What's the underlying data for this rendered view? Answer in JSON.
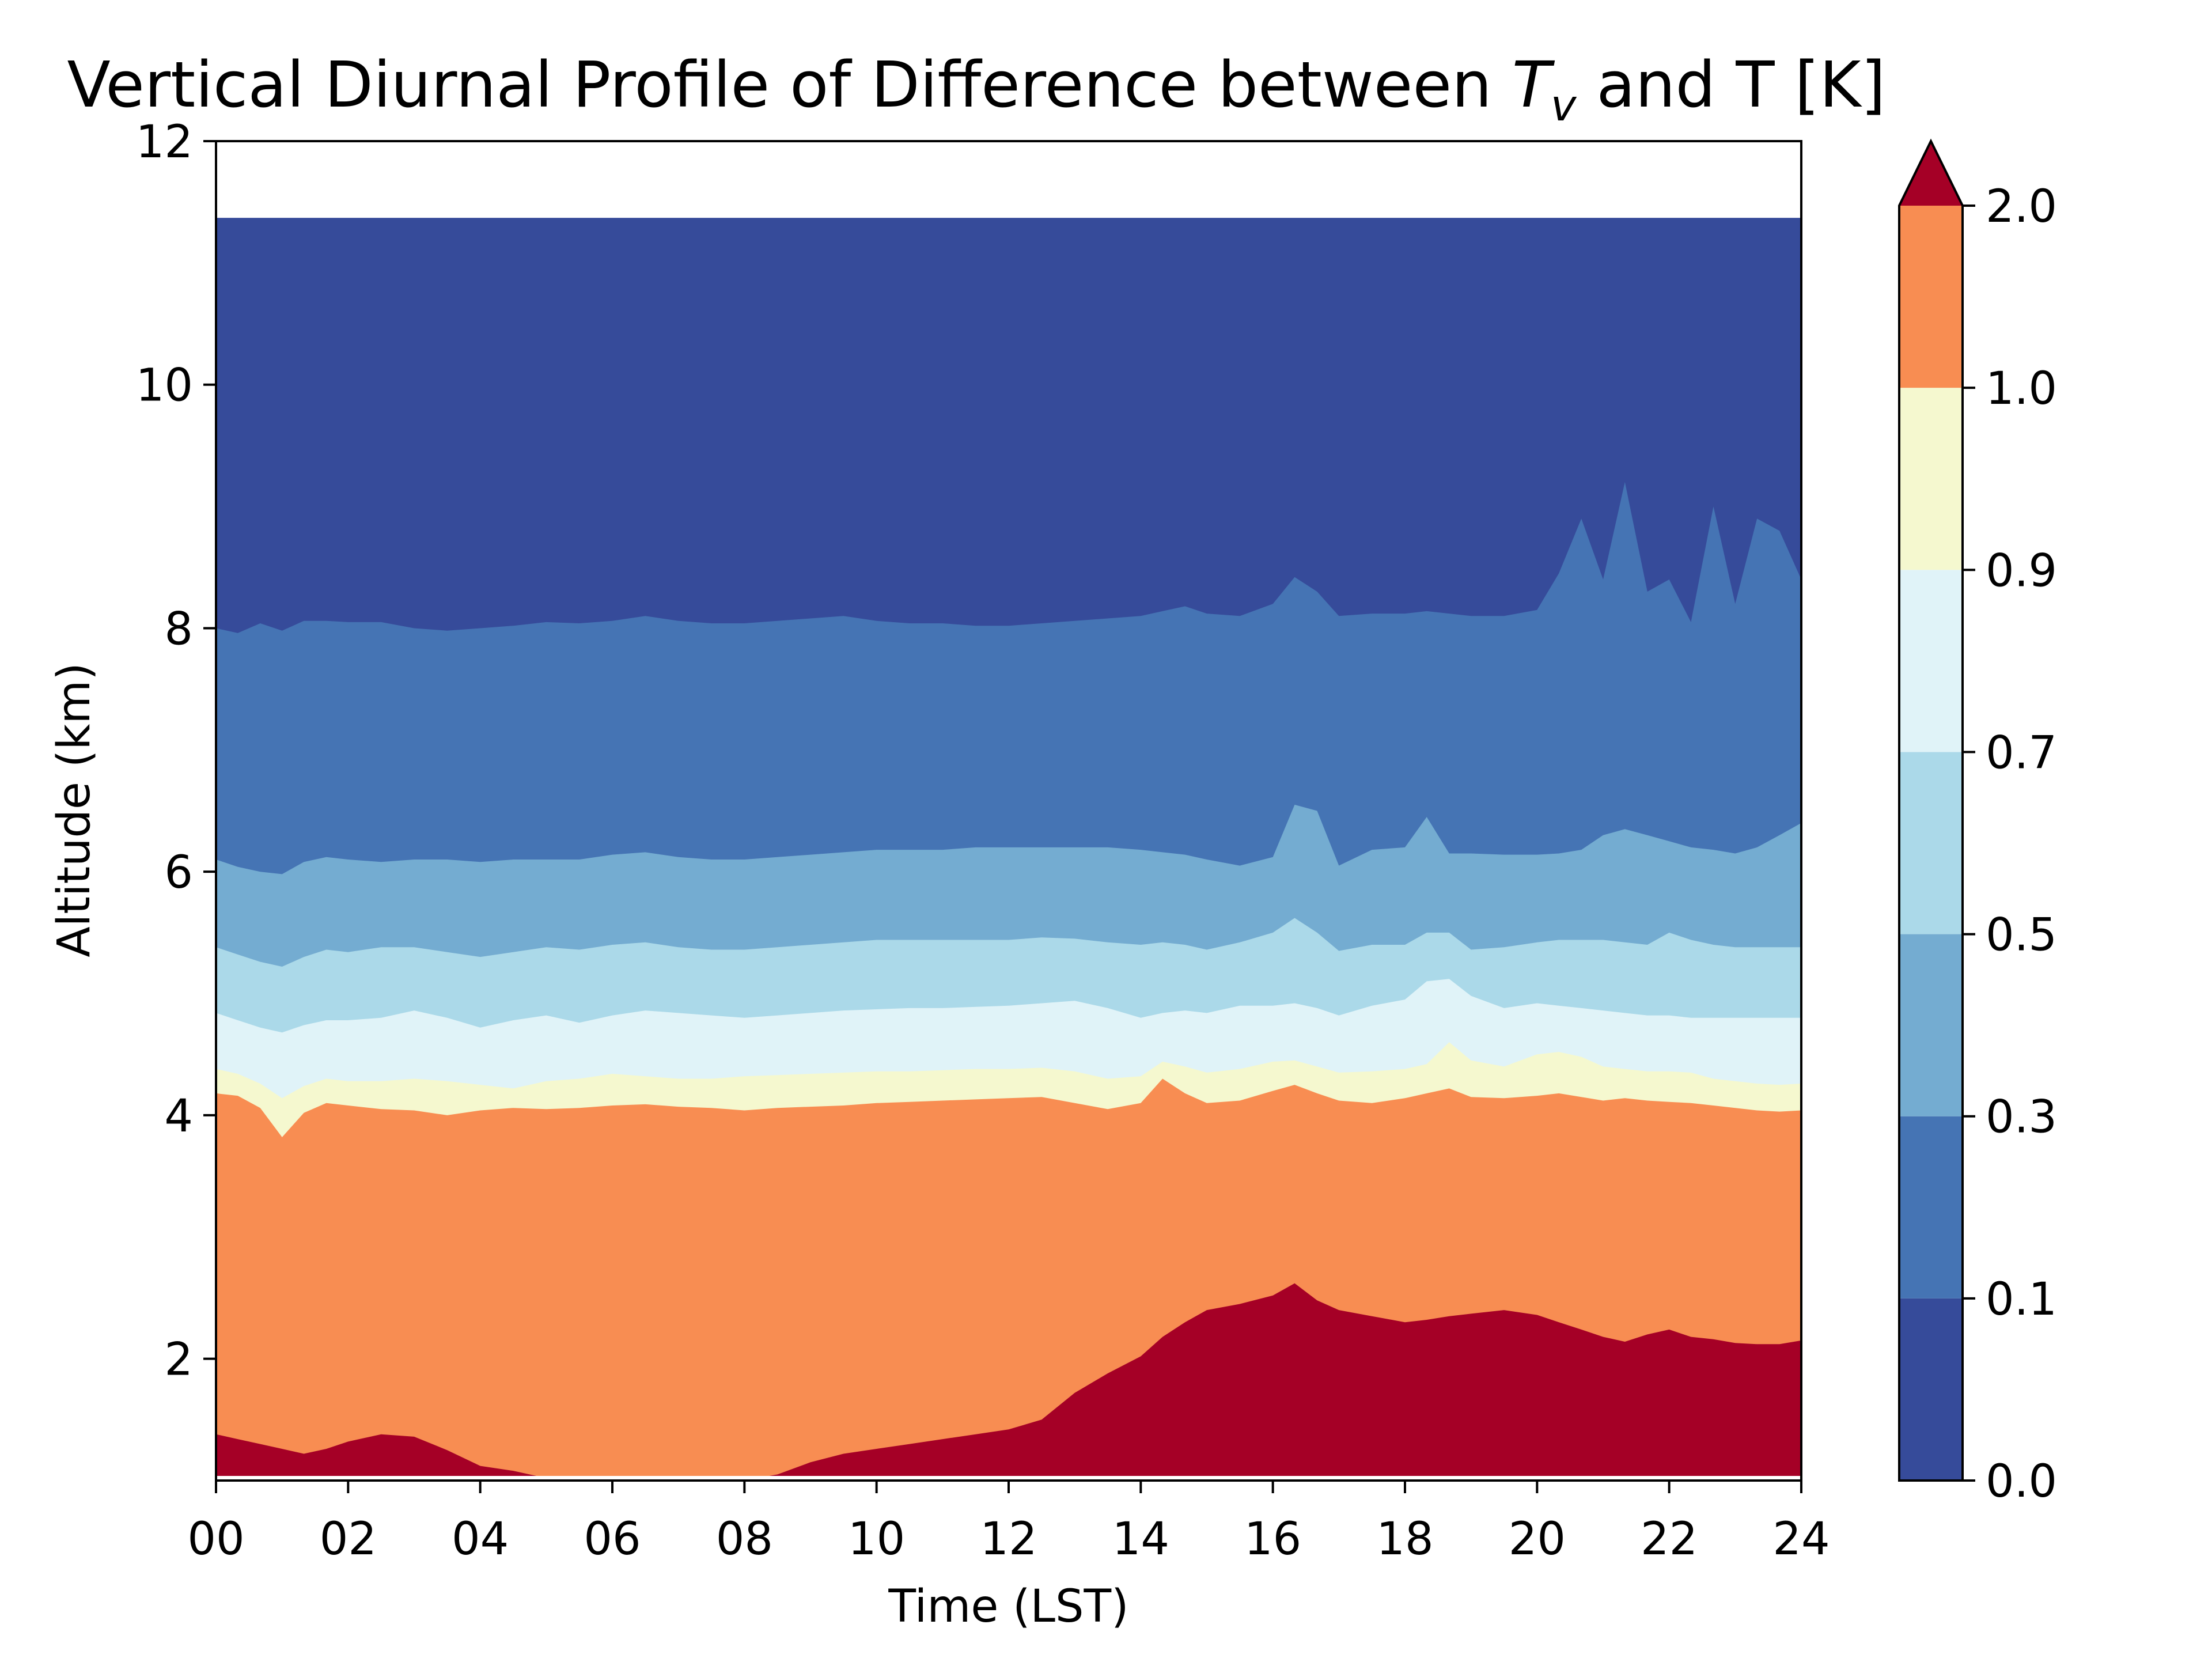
{
  "chart_data": {
    "type": "contourf",
    "title_main": "Vertical Diurnal Profile of Difference between ",
    "title_sym": "T",
    "title_sub": "v",
    "title_tail": " and T [K]",
    "xlabel": "Time (LST)",
    "ylabel": "Altitude (km)",
    "xlim": [
      0,
      24
    ],
    "ylim": [
      1,
      12
    ],
    "data_top_km": 11.37,
    "x_ticks": [
      0,
      2,
      4,
      6,
      8,
      10,
      12,
      14,
      16,
      18,
      20,
      22,
      24
    ],
    "x_tick_labels": [
      "00",
      "02",
      "04",
      "06",
      "08",
      "10",
      "12",
      "14",
      "16",
      "18",
      "20",
      "22",
      "24"
    ],
    "y_ticks": [
      2,
      4,
      6,
      8,
      10,
      12
    ],
    "y_tick_labels": [
      "2",
      "4",
      "6",
      "8",
      "10",
      "12"
    ],
    "x": [
      0,
      0.33,
      0.67,
      1,
      1.33,
      1.67,
      2,
      2.5,
      3,
      3.5,
      4,
      4.5,
      5,
      5.5,
      6,
      6.5,
      7,
      7.5,
      8,
      8.5,
      9,
      9.5,
      10,
      10.5,
      11,
      11.5,
      12,
      12.5,
      13,
      13.5,
      14,
      14.33,
      14.67,
      15,
      15.5,
      16,
      16.33,
      16.67,
      17,
      17.5,
      18,
      18.33,
      18.67,
      19,
      19.5,
      20,
      20.33,
      20.67,
      21,
      21.33,
      21.67,
      22,
      22.33,
      22.67,
      23,
      23.33,
      23.67,
      24
    ],
    "boundaries": [
      {
        "level": 2.0,
        "altitude_km": [
          1.38,
          1.34,
          1.3,
          1.26,
          1.22,
          1.26,
          1.32,
          1.38,
          1.36,
          1.25,
          1.12,
          1.08,
          1.02,
          1.01,
          1.01,
          1.0,
          1.0,
          1.0,
          1.0,
          1.05,
          1.15,
          1.22,
          1.26,
          1.3,
          1.34,
          1.38,
          1.42,
          1.5,
          1.72,
          1.88,
          2.02,
          2.18,
          2.3,
          2.4,
          2.45,
          2.52,
          2.62,
          2.48,
          2.4,
          2.35,
          2.3,
          2.32,
          2.35,
          2.37,
          2.4,
          2.36,
          2.3,
          2.24,
          2.18,
          2.14,
          2.2,
          2.24,
          2.18,
          2.16,
          2.13,
          2.12,
          2.12,
          2.15
        ]
      },
      {
        "level": 1.0,
        "altitude_km": [
          4.18,
          4.16,
          4.06,
          3.82,
          4.02,
          4.1,
          4.08,
          4.05,
          4.04,
          4.0,
          4.04,
          4.06,
          4.05,
          4.06,
          4.08,
          4.09,
          4.07,
          4.06,
          4.04,
          4.06,
          4.07,
          4.08,
          4.1,
          4.11,
          4.12,
          4.13,
          4.14,
          4.15,
          4.1,
          4.05,
          4.1,
          4.3,
          4.18,
          4.1,
          4.12,
          4.2,
          4.25,
          4.18,
          4.12,
          4.1,
          4.14,
          4.18,
          4.22,
          4.15,
          4.14,
          4.16,
          4.18,
          4.15,
          4.12,
          4.14,
          4.12,
          4.11,
          4.1,
          4.08,
          4.06,
          4.04,
          4.03,
          4.04
        ]
      },
      {
        "level": 0.9,
        "altitude_km": [
          4.38,
          4.34,
          4.26,
          4.14,
          4.24,
          4.3,
          4.28,
          4.28,
          4.3,
          4.28,
          4.25,
          4.22,
          4.28,
          4.3,
          4.34,
          4.32,
          4.3,
          4.3,
          4.32,
          4.33,
          4.34,
          4.35,
          4.36,
          4.36,
          4.37,
          4.38,
          4.38,
          4.39,
          4.36,
          4.3,
          4.32,
          4.44,
          4.4,
          4.35,
          4.38,
          4.44,
          4.45,
          4.4,
          4.35,
          4.36,
          4.38,
          4.42,
          4.6,
          4.45,
          4.4,
          4.5,
          4.52,
          4.48,
          4.4,
          4.38,
          4.36,
          4.36,
          4.35,
          4.3,
          4.28,
          4.26,
          4.25,
          4.26
        ]
      },
      {
        "level": 0.7,
        "altitude_km": [
          4.84,
          4.78,
          4.72,
          4.68,
          4.74,
          4.78,
          4.78,
          4.8,
          4.86,
          4.8,
          4.72,
          4.78,
          4.82,
          4.76,
          4.82,
          4.86,
          4.84,
          4.82,
          4.8,
          4.82,
          4.84,
          4.86,
          4.87,
          4.88,
          4.88,
          4.89,
          4.9,
          4.92,
          4.94,
          4.88,
          4.8,
          4.84,
          4.86,
          4.84,
          4.9,
          4.9,
          4.92,
          4.88,
          4.82,
          4.9,
          4.95,
          5.1,
          5.12,
          4.98,
          4.88,
          4.92,
          4.9,
          4.88,
          4.86,
          4.84,
          4.82,
          4.82,
          4.8,
          4.8,
          4.8,
          4.8,
          4.8,
          4.8
        ]
      },
      {
        "level": 0.5,
        "altitude_km": [
          5.38,
          5.32,
          5.26,
          5.22,
          5.3,
          5.36,
          5.34,
          5.38,
          5.38,
          5.34,
          5.3,
          5.34,
          5.38,
          5.36,
          5.4,
          5.42,
          5.38,
          5.36,
          5.36,
          5.38,
          5.4,
          5.42,
          5.44,
          5.44,
          5.44,
          5.44,
          5.44,
          5.46,
          5.45,
          5.42,
          5.4,
          5.42,
          5.4,
          5.36,
          5.42,
          5.5,
          5.62,
          5.5,
          5.35,
          5.4,
          5.4,
          5.5,
          5.5,
          5.36,
          5.38,
          5.42,
          5.44,
          5.44,
          5.44,
          5.42,
          5.4,
          5.5,
          5.44,
          5.4,
          5.38,
          5.38,
          5.38,
          5.38
        ]
      },
      {
        "level": 0.3,
        "altitude_km": [
          6.1,
          6.04,
          6.0,
          5.98,
          6.08,
          6.12,
          6.1,
          6.08,
          6.1,
          6.1,
          6.08,
          6.1,
          6.1,
          6.1,
          6.14,
          6.16,
          6.12,
          6.1,
          6.1,
          6.12,
          6.14,
          6.16,
          6.18,
          6.18,
          6.18,
          6.2,
          6.2,
          6.2,
          6.2,
          6.2,
          6.18,
          6.16,
          6.14,
          6.1,
          6.05,
          6.12,
          6.55,
          6.5,
          6.05,
          6.18,
          6.2,
          6.45,
          6.15,
          6.15,
          6.14,
          6.14,
          6.15,
          6.18,
          6.3,
          6.35,
          6.3,
          6.25,
          6.2,
          6.18,
          6.15,
          6.2,
          6.3,
          6.4
        ]
      },
      {
        "level": 0.1,
        "altitude_km": [
          8.0,
          7.96,
          8.04,
          7.98,
          8.06,
          8.06,
          8.05,
          8.05,
          8.0,
          7.98,
          8.0,
          8.02,
          8.05,
          8.04,
          8.06,
          8.1,
          8.06,
          8.04,
          8.04,
          8.06,
          8.08,
          8.1,
          8.06,
          8.04,
          8.04,
          8.02,
          8.02,
          8.04,
          8.06,
          8.08,
          8.1,
          8.14,
          8.18,
          8.12,
          8.1,
          8.2,
          8.42,
          8.3,
          8.1,
          8.12,
          8.12,
          8.14,
          8.12,
          8.1,
          8.1,
          8.15,
          8.45,
          8.9,
          8.4,
          9.2,
          8.3,
          8.4,
          8.05,
          9.0,
          8.2,
          8.9,
          8.8,
          8.4
        ]
      }
    ],
    "colorbar": {
      "levels": [
        0.0,
        0.1,
        0.3,
        0.5,
        0.7,
        0.9,
        1.0,
        2.0
      ],
      "tick_labels": [
        "0.0",
        "0.1",
        "0.3",
        "0.5",
        "0.7",
        "0.9",
        "1.0",
        "2.0"
      ],
      "colors": [
        "#364b9a",
        "#4574b4",
        "#74acd1",
        "#abd9e9",
        "#e0f3f8",
        "#f5f8cf",
        "#f88d52",
        "#a50026"
      ],
      "extend": "max"
    },
    "colors": {
      "below_0.1": "#364b9a",
      "0.1_0.3": "#4574b4",
      "0.3_0.5": "#74acd1",
      "0.5_0.7": "#abd9e9",
      "0.7_0.9": "#e0f3f8",
      "0.9_1.0": "#f5f8cf",
      "1.0_2.0": "#f88d52",
      "above_2.0": "#a50026"
    }
  }
}
